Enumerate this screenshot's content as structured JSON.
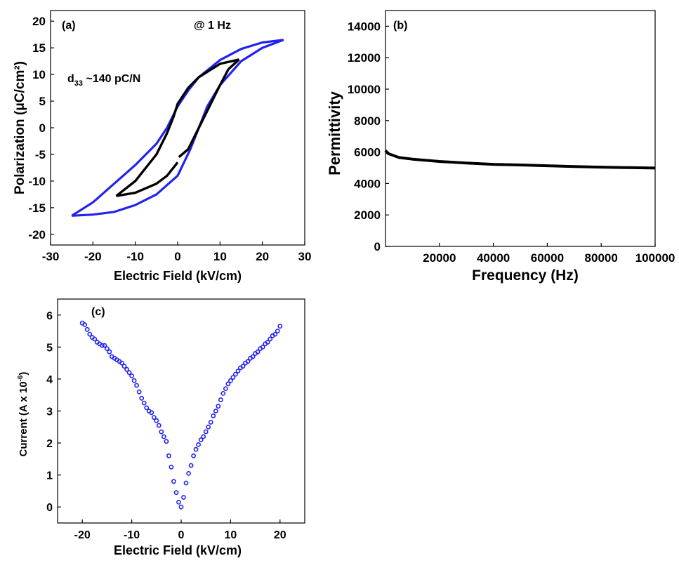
{
  "chart_data": [
    {
      "panel": "(a)",
      "type": "line",
      "xlabel": "Electric Field (kV/cm)",
      "ylabel": "Polarization (μC/cm²)",
      "xlim": [
        -30,
        30
      ],
      "ylim": [
        -22,
        22
      ],
      "xticks": [
        -30,
        -20,
        -10,
        0,
        10,
        20,
        30
      ],
      "yticks": [
        -20,
        -15,
        -10,
        -5,
        0,
        5,
        10,
        15,
        20
      ],
      "annotations": {
        "frequency": "@ 1 Hz",
        "d33_label": "d",
        "d33_sub": "33",
        "d33_value": " ~140 pC/N"
      },
      "series": [
        {
          "color": "#2222ee",
          "upper": [
            [
              -25,
              -16.5
            ],
            [
              -20,
              -14
            ],
            [
              -15,
              -10.5
            ],
            [
              -10,
              -7
            ],
            [
              -5,
              -3
            ],
            [
              -2.5,
              0
            ],
            [
              0,
              4
            ],
            [
              2.5,
              7
            ],
            [
              5,
              9.5
            ],
            [
              10,
              12.7
            ],
            [
              15,
              14.8
            ],
            [
              20,
              16
            ],
            [
              25,
              16.5
            ]
          ],
          "lower": [
            [
              25,
              16.5
            ],
            [
              20,
              15
            ],
            [
              15,
              12.5
            ],
            [
              10,
              8
            ],
            [
              7,
              4
            ],
            [
              5,
              0
            ],
            [
              3,
              -4
            ],
            [
              0,
              -9
            ],
            [
              -5,
              -12.5
            ],
            [
              -10,
              -14.5
            ],
            [
              -15,
              -15.8
            ],
            [
              -20,
              -16.3
            ],
            [
              -25,
              -16.5
            ]
          ]
        },
        {
          "color": "#000000",
          "upper": [
            [
              -14.5,
              -12.8
            ],
            [
              -10,
              -10
            ],
            [
              -5,
              -5
            ],
            [
              -2.5,
              -1
            ],
            [
              -1,
              2
            ],
            [
              0,
              4.5
            ],
            [
              2.5,
              7.5
            ],
            [
              5,
              9.5
            ],
            [
              10,
              12
            ],
            [
              14.5,
              12.8
            ]
          ],
          "lower": [
            [
              14.5,
              12.8
            ],
            [
              12,
              11
            ],
            [
              10,
              8
            ],
            [
              7.5,
              4
            ],
            [
              5,
              0
            ],
            [
              2.5,
              -4
            ],
            [
              0.3,
              -5.5
            ]
          ],
          "lower2": [
            [
              0,
              -6.5
            ],
            [
              -2.5,
              -9
            ],
            [
              -5,
              -10.5
            ],
            [
              -10,
              -12.2
            ],
            [
              -14.5,
              -12.8
            ]
          ]
        }
      ]
    },
    {
      "panel": "(b)",
      "type": "line",
      "xlabel": "Frequency (Hz)",
      "ylabel": "Permittivity",
      "xlim": [
        0,
        100000
      ],
      "ylim": [
        0,
        15000
      ],
      "xticks": [
        20000,
        40000,
        60000,
        80000,
        100000
      ],
      "yticks": [
        0,
        2000,
        4000,
        6000,
        8000,
        10000,
        12000,
        14000
      ],
      "series": [
        {
          "color": "#000000",
          "x": [
            0,
            1000,
            5000,
            10000,
            20000,
            30000,
            40000,
            50000,
            60000,
            70000,
            80000,
            90000,
            100000
          ],
          "y": [
            6100,
            5900,
            5650,
            5550,
            5400,
            5300,
            5220,
            5180,
            5130,
            5080,
            5040,
            5010,
            4980
          ]
        }
      ]
    },
    {
      "panel": "(c)",
      "type": "scatter",
      "xlabel": "Electric Field (kV/cm)",
      "ylabel_main": "Current (A x 10",
      "ylabel_sup": "-6",
      "ylabel_end": ")",
      "xlim": [
        -25,
        25
      ],
      "ylim": [
        -0.5,
        6.5
      ],
      "xticks": [
        -20,
        -10,
        0,
        10,
        20
      ],
      "yticks": [
        0,
        1,
        2,
        3,
        4,
        5,
        6
      ],
      "series": [
        {
          "color": "#2222ee",
          "x": [
            -20,
            -19.5,
            -19,
            -18.5,
            -18,
            -17.5,
            -17,
            -16.5,
            -16,
            -15.5,
            -15,
            -14.5,
            -14,
            -13.5,
            -13,
            -12.5,
            -12,
            -11.5,
            -11,
            -10.5,
            -10,
            -9.5,
            -9,
            -8.5,
            -8,
            -7.5,
            -7,
            -6.5,
            -6,
            -5.5,
            -5,
            -4.5,
            -4,
            -3.5,
            -3,
            -2.5,
            -2,
            -1.5,
            -1,
            -0.5,
            0,
            0.5,
            1,
            1.5,
            2,
            2.5,
            3,
            3.5,
            4,
            4.5,
            5,
            5.5,
            6,
            6.5,
            7,
            7.5,
            8,
            8.5,
            9,
            9.5,
            10,
            10.5,
            11,
            11.5,
            12,
            12.5,
            13,
            13.5,
            14,
            14.5,
            15,
            15.5,
            16,
            16.5,
            17,
            17.5,
            18,
            18.5,
            19,
            19.5,
            20
          ],
          "y": [
            5.75,
            5.7,
            5.55,
            5.4,
            5.3,
            5.25,
            5.15,
            5.1,
            5.05,
            5.05,
            4.95,
            4.85,
            4.7,
            4.65,
            4.6,
            4.55,
            4.5,
            4.4,
            4.3,
            4.2,
            4.1,
            3.95,
            3.8,
            3.6,
            3.4,
            3.25,
            3.1,
            3.0,
            2.95,
            2.8,
            2.7,
            2.55,
            2.35,
            2.2,
            2.05,
            1.6,
            1.25,
            0.8,
            0.45,
            0.15,
            0.0,
            0.3,
            0.75,
            1.05,
            1.3,
            1.6,
            1.8,
            1.95,
            2.1,
            2.2,
            2.35,
            2.5,
            2.65,
            2.85,
            3.0,
            3.15,
            3.35,
            3.55,
            3.7,
            3.85,
            3.95,
            4.05,
            4.15,
            4.25,
            4.35,
            4.4,
            4.5,
            4.55,
            4.65,
            4.7,
            4.8,
            4.85,
            4.95,
            5.0,
            5.1,
            5.15,
            5.25,
            5.35,
            5.4,
            5.5,
            5.65
          ]
        }
      ]
    }
  ]
}
